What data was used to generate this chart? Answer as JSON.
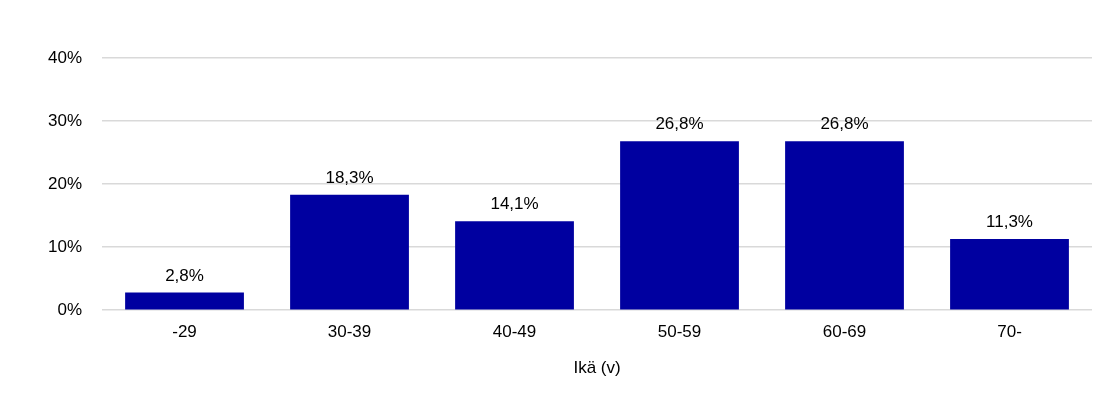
{
  "chart_data": {
    "type": "bar",
    "xlabel": "Ikä (v)",
    "categories": [
      "-29",
      "30-39",
      "40-49",
      "50-59",
      "60-69",
      "70-"
    ],
    "values": [
      2.8,
      18.3,
      14.1,
      26.8,
      26.8,
      11.3
    ],
    "value_labels": [
      "2,8%",
      "18,3%",
      "14,1%",
      "26,8%",
      "26,8%",
      "11,3%"
    ],
    "color": "#0000a0",
    "ylim": [
      0,
      40
    ],
    "yticks": [
      {
        "value": 0,
        "label": "0%"
      },
      {
        "value": 10,
        "label": "10%"
      },
      {
        "value": 20,
        "label": "20%"
      },
      {
        "value": 30,
        "label": "30%"
      },
      {
        "value": 40,
        "label": "40%"
      }
    ],
    "grid": "y",
    "legend": false
  }
}
